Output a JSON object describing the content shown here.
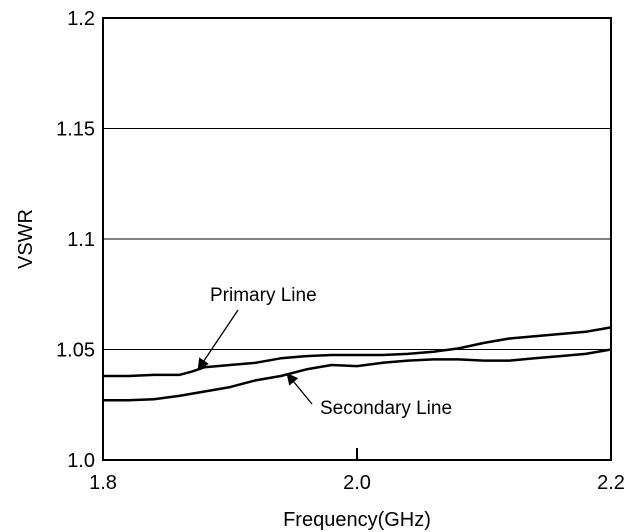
{
  "chart_data": {
    "type": "line",
    "title": "",
    "xlabel": "Frequency(GHz)",
    "ylabel": "VSWR",
    "xlim": [
      1.8,
      2.2
    ],
    "ylim": [
      1.0,
      1.2
    ],
    "x_ticks": [
      "1.8",
      "2.0",
      "2.2"
    ],
    "y_ticks": [
      "1.0",
      "1.05",
      "1.1",
      "1.15",
      "1.2"
    ],
    "grid": "horizontal",
    "legend": "none",
    "line_color": "#000000",
    "series": [
      {
        "name": "Primary Line",
        "x": [
          1.8,
          1.82,
          1.84,
          1.86,
          1.87,
          1.88,
          1.9,
          1.92,
          1.94,
          1.96,
          1.98,
          2.0,
          2.02,
          2.04,
          2.06,
          2.08,
          2.1,
          2.12,
          2.14,
          2.16,
          2.18,
          2.2
        ],
        "y": [
          1.038,
          1.038,
          1.0385,
          1.0385,
          1.04,
          1.042,
          1.043,
          1.044,
          1.046,
          1.047,
          1.0475,
          1.0475,
          1.0475,
          1.048,
          1.049,
          1.0505,
          1.053,
          1.055,
          1.056,
          1.057,
          1.058,
          1.06
        ]
      },
      {
        "name": "Secondary Line",
        "x": [
          1.8,
          1.82,
          1.84,
          1.86,
          1.88,
          1.9,
          1.92,
          1.94,
          1.96,
          1.98,
          2.0,
          2.02,
          2.04,
          2.06,
          2.08,
          2.1,
          2.12,
          2.14,
          2.16,
          2.18,
          2.2
        ],
        "y": [
          1.027,
          1.027,
          1.0275,
          1.029,
          1.031,
          1.033,
          1.036,
          1.038,
          1.041,
          1.043,
          1.0425,
          1.044,
          1.045,
          1.0455,
          1.0455,
          1.045,
          1.045,
          1.046,
          1.047,
          1.048,
          1.05
        ]
      }
    ],
    "annotations": [
      {
        "text": "Primary Line",
        "target_series": 0,
        "target_x": 1.875,
        "target_y": 1.041
      },
      {
        "text": "Secondary Line",
        "target_series": 1,
        "target_x": 1.945,
        "target_y": 1.039
      }
    ]
  }
}
